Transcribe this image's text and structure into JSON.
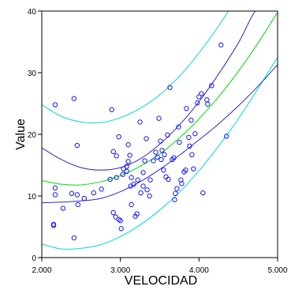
{
  "chart_data": {
    "type": "scatter",
    "title": "",
    "xlabel": "VELOCIDAD",
    "ylabel": "Value",
    "xlim": [
      2.0,
      5.0
    ],
    "ylim": [
      0,
      40
    ],
    "x_ticks": [
      2.0,
      3.0,
      4.0,
      5.0
    ],
    "x_tick_labels": [
      "2.000",
      "3.000",
      "4.000",
      "5.000"
    ],
    "y_ticks": [
      0,
      10,
      20,
      30,
      40
    ],
    "y_tick_labels": [
      "0",
      "10",
      "20",
      "30",
      "40"
    ],
    "grid": false,
    "legend": "none",
    "colors": {
      "points": "#1a1aff",
      "fit": "#00e000",
      "confidence_band": "#2a2acc",
      "prediction_band": "#00d8d8"
    },
    "points": [
      [
        2.17,
        24.8
      ],
      [
        2.41,
        25.8
      ],
      [
        2.17,
        11.3
      ],
      [
        2.17,
        10.2
      ],
      [
        2.15,
        5.4
      ],
      [
        2.15,
        5.2
      ],
      [
        2.27,
        8.0
      ],
      [
        2.38,
        10.4
      ],
      [
        2.45,
        10.2
      ],
      [
        2.41,
        3.2
      ],
      [
        2.45,
        18.2
      ],
      [
        2.46,
        8.6
      ],
      [
        2.54,
        9.6
      ],
      [
        2.66,
        10.5
      ],
      [
        2.76,
        11.1
      ],
      [
        2.89,
        24.0
      ],
      [
        2.91,
        17.2
      ],
      [
        2.95,
        16.5
      ],
      [
        2.98,
        19.6
      ],
      [
        2.87,
        12.7
      ],
      [
        2.94,
        6.6
      ],
      [
        2.91,
        7.3
      ],
      [
        2.98,
        6.2
      ],
      [
        2.95,
        13.0
      ],
      [
        3.0,
        6.0
      ],
      [
        3.01,
        4.7
      ],
      [
        3.03,
        13.5
      ],
      [
        3.04,
        14.4
      ],
      [
        3.08,
        14.8
      ],
      [
        3.08,
        14.0
      ],
      [
        3.1,
        15.6
      ],
      [
        3.1,
        18.3
      ],
      [
        3.12,
        16.6
      ],
      [
        3.14,
        13.0
      ],
      [
        3.13,
        11.6
      ],
      [
        3.14,
        8.6
      ],
      [
        3.17,
        11.9
      ],
      [
        3.22,
        12.6
      ],
      [
        3.19,
        6.7
      ],
      [
        3.21,
        7.1
      ],
      [
        3.25,
        22.0
      ],
      [
        3.26,
        10.5
      ],
      [
        3.29,
        11.6
      ],
      [
        3.29,
        13.8
      ],
      [
        3.31,
        15.7
      ],
      [
        3.33,
        19.3
      ],
      [
        3.34,
        11.0
      ],
      [
        3.37,
        10.0
      ],
      [
        3.38,
        12.6
      ],
      [
        3.42,
        15.7
      ],
      [
        3.45,
        17.1
      ],
      [
        3.47,
        16.3
      ],
      [
        3.49,
        22.6
      ],
      [
        3.51,
        18.9
      ],
      [
        3.52,
        15.9
      ],
      [
        3.53,
        17.4
      ],
      [
        3.55,
        14.2
      ],
      [
        3.56,
        16.7
      ],
      [
        3.58,
        13.1
      ],
      [
        3.6,
        19.9
      ],
      [
        3.61,
        12.7
      ],
      [
        3.63,
        27.6
      ],
      [
        3.66,
        15.9
      ],
      [
        3.68,
        16.2
      ],
      [
        3.69,
        9.4
      ],
      [
        3.7,
        10.4
      ],
      [
        3.72,
        11.2
      ],
      [
        3.74,
        21.2
      ],
      [
        3.75,
        18.7
      ],
      [
        3.77,
        12.6
      ],
      [
        3.78,
        12.0
      ],
      [
        3.81,
        13.9
      ],
      [
        3.83,
        14.2
      ],
      [
        3.84,
        24.2
      ],
      [
        3.87,
        19.5
      ],
      [
        3.88,
        18.1
      ],
      [
        3.9,
        22.3
      ],
      [
        3.91,
        16.7
      ],
      [
        3.93,
        14.4
      ],
      [
        3.95,
        20.1
      ],
      [
        3.98,
        25.1
      ],
      [
        4.0,
        26.1
      ],
      [
        4.03,
        26.6
      ],
      [
        4.05,
        10.5
      ],
      [
        4.1,
        25.6
      ],
      [
        4.11,
        24.9
      ],
      [
        4.16,
        27.9
      ],
      [
        4.28,
        34.5
      ],
      [
        4.35,
        19.7
      ]
    ],
    "fit": {
      "name": "",
      "x": [
        2.0,
        2.25,
        2.5,
        2.75,
        3.0,
        3.25,
        3.5,
        3.75,
        4.0,
        4.25,
        4.5,
        4.75,
        5.0
      ],
      "y": [
        12.5,
        11.9,
        11.8,
        12.3,
        13.3,
        14.8,
        16.8,
        19.4,
        22.5,
        26.1,
        30.2,
        34.8,
        39.8
      ]
    },
    "confidence_band": {
      "name": "",
      "upper": {
        "x": [
          2.0,
          2.25,
          2.5,
          2.75,
          3.0,
          3.25,
          3.5,
          3.75,
          4.0,
          4.25,
          4.5,
          4.75,
          5.0
        ],
        "y": [
          17.8,
          15.9,
          14.6,
          14.2,
          14.6,
          16.0,
          18.4,
          21.5,
          25.3,
          29.8,
          34.8,
          40.5,
          40.5
        ]
      },
      "lower": {
        "x": [
          2.0,
          2.25,
          2.5,
          2.75,
          3.0,
          3.25,
          3.5,
          3.75,
          4.0,
          4.25,
          4.5,
          4.75,
          5.0
        ],
        "y": [
          8.9,
          9.0,
          9.2,
          9.6,
          10.7,
          12.3,
          14.3,
          16.6,
          19.1,
          21.7,
          24.6,
          27.8,
          31.3
        ]
      }
    },
    "prediction_band": {
      "name": "",
      "upper": {
        "x": [
          2.0,
          2.25,
          2.5,
          2.75,
          3.0,
          3.25,
          3.5,
          3.75,
          4.0,
          4.25,
          4.5,
          4.75,
          5.0
        ],
        "y": [
          24.8,
          22.9,
          22.0,
          21.9,
          22.7,
          24.2,
          26.4,
          29.4,
          33.2,
          37.6,
          42.6,
          48.3,
          54.6
        ]
      },
      "lower": {
        "x": [
          2.0,
          2.25,
          2.5,
          2.75,
          3.0,
          3.25,
          3.5,
          3.75,
          4.0,
          4.25,
          4.5,
          4.75,
          5.0
        ],
        "y": [
          2.2,
          1.4,
          1.5,
          2.1,
          3.4,
          5.3,
          7.7,
          10.6,
          14.1,
          18.1,
          22.5,
          27.4,
          32.5
        ]
      }
    }
  }
}
